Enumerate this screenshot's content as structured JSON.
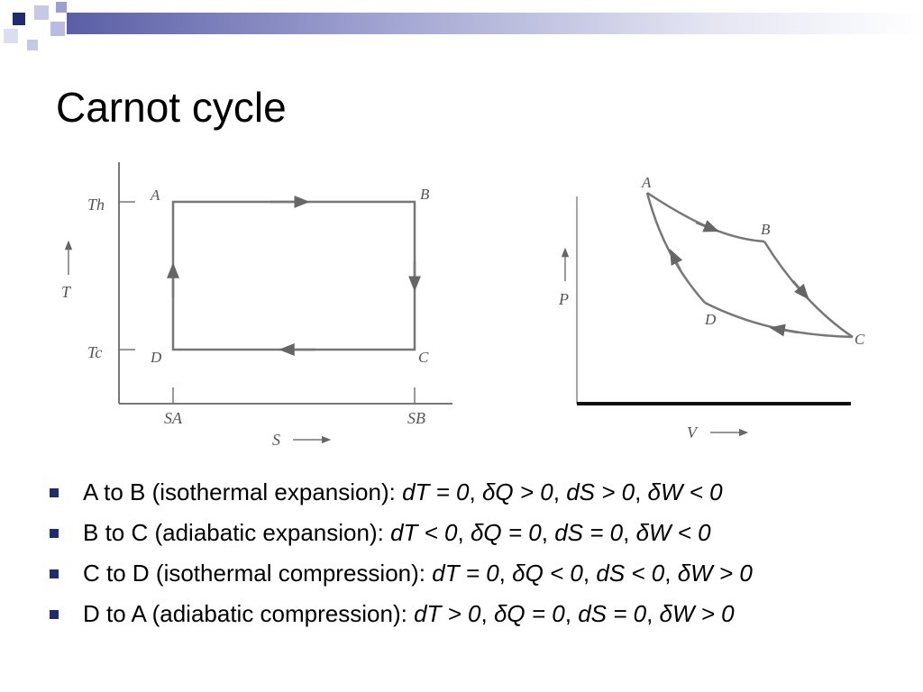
{
  "colors": {
    "accent_dark": "#1f2d6e",
    "accent_mid": "#5a5ea6",
    "accent_light": "#b9bcdf"
  },
  "title": "Carnot cycle",
  "ts_diagram": {
    "axis_x_label": "S",
    "axis_y_label": "T",
    "tick_th": "Th",
    "tick_tc": "Tc",
    "tick_sa": "SA",
    "tick_sb": "SB",
    "point_a": "A",
    "point_b": "B",
    "point_c": "C",
    "point_d": "D"
  },
  "pv_diagram": {
    "axis_x_label": "V",
    "axis_y_label": "P",
    "point_a": "A",
    "point_b": "B",
    "point_c": "C",
    "point_d": "D"
  },
  "bullets": [
    {
      "label": "A to B (isothermal expansion): ",
      "dT": "dT = 0",
      "dQ": "Q > 0",
      "dS": "dS > 0",
      "dW": "W < 0"
    },
    {
      "label": "B to C (adiabatic expansion): ",
      "dT": "dT < 0",
      "dQ": "Q = 0",
      "dS": "dS = 0",
      "dW": "W < 0"
    },
    {
      "label": "C to D (isothermal compression): ",
      "dT": "dT = 0",
      "dQ": "Q < 0",
      "dS": "dS < 0",
      "dW": "W > 0"
    },
    {
      "label": "D to A (adiabatic compression): ",
      "dT": "dT > 0",
      "dQ": "Q = 0",
      "dS": "dS = 0",
      "dW": "W > 0"
    }
  ],
  "separator": ", ",
  "delta": "δ"
}
